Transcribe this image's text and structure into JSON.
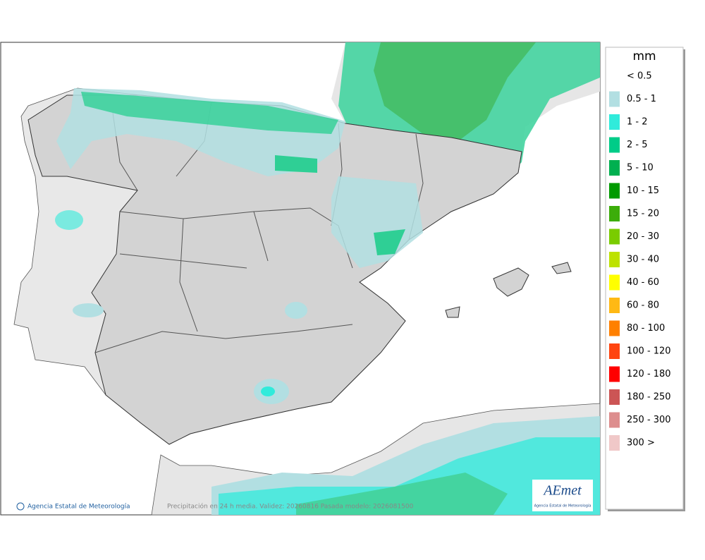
{
  "legend": {
    "title": "mm",
    "items": [
      {
        "label": "< 0.5",
        "color": "#ffffff"
      },
      {
        "label": "0.5 - 1",
        "color": "#b2dfe2"
      },
      {
        "label": "1 - 2",
        "color": "#30ebdb"
      },
      {
        "label": "2 - 5",
        "color": "#00cc88"
      },
      {
        "label": "5 - 10",
        "color": "#00b050"
      },
      {
        "label": "10 - 15",
        "color": "#009a00"
      },
      {
        "label": "15 - 20",
        "color": "#3cad0a"
      },
      {
        "label": "20 - 30",
        "color": "#7acc00"
      },
      {
        "label": "30 - 40",
        "color": "#bde200"
      },
      {
        "label": "40 - 60",
        "color": "#ffff00"
      },
      {
        "label": "60 - 80",
        "color": "#ffb914"
      },
      {
        "label": "80 - 100",
        "color": "#ff8000"
      },
      {
        "label": "100 - 120",
        "color": "#ff4410"
      },
      {
        "label": "120 - 180",
        "color": "#ff0000"
      },
      {
        "label": "180 - 250",
        "color": "#cc5555"
      },
      {
        "label": "250 - 300",
        "color": "#dd8d8d"
      },
      {
        "label": "300 >",
        "color": "#f0c8c8"
      }
    ]
  },
  "footer": {
    "agency": "Agencia Estatal de Meteorología",
    "caption": "Precipitación en 24 h media. Validez: 20260816 Pasada modelo: 2026081500"
  },
  "logo": {
    "name": "AEmet",
    "subtitle": "Agencia Estatal de Meteorología"
  }
}
